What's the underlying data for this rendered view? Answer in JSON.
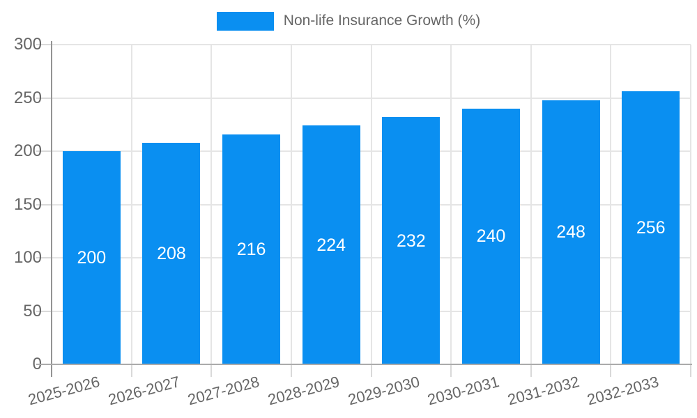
{
  "chart_data": {
    "type": "bar",
    "title": "",
    "legend": {
      "label": "Non-life Insurance Growth (%)",
      "position": "top"
    },
    "categories": [
      "2025-2026",
      "2026-2027",
      "2027-2028",
      "2028-2029",
      "2029-2030",
      "2030-2031",
      "2031-2032",
      "2032-2033"
    ],
    "values": [
      200,
      208,
      216,
      224,
      232,
      240,
      248,
      256
    ],
    "xlabel": "",
    "ylabel": "",
    "ylim": [
      0,
      300
    ],
    "yticks": [
      0,
      50,
      100,
      150,
      200,
      250,
      300
    ],
    "grid": true,
    "bar_value_labels_shown": true,
    "colors": {
      "bar": "#0a8ff1",
      "grid": "#e5e5e5",
      "y_axis": "#949494",
      "x_axis": "#ababab",
      "outer_tick": "#d9d9d9",
      "tick_label": "#666666",
      "legend_text": "#666666",
      "value_label": "#ffffff",
      "background": "#ffffff"
    }
  }
}
